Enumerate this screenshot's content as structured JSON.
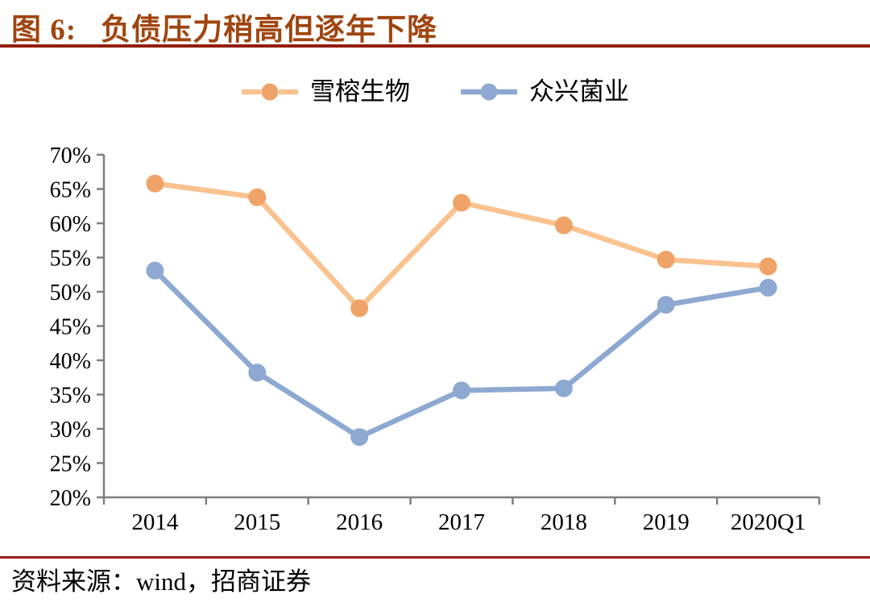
{
  "figure": {
    "number_label": "图 6:",
    "title": "负债压力稍高但逐年下降",
    "source": "资料来源：wind，招商证券"
  },
  "colors": {
    "title_text": "#A0450F",
    "title_rule": "#941E0E",
    "source_rule": "#941E0E",
    "axis": "#7F7F7F",
    "text": "#000000"
  },
  "chart_data": {
    "type": "line",
    "title": "负债压力稍高但逐年下降",
    "categories": [
      "2014",
      "2015",
      "2016",
      "2017",
      "2018",
      "2019",
      "2020Q1"
    ],
    "series": [
      {
        "name": "雪榕生物",
        "values": [
          65.8,
          63.8,
          47.6,
          63.0,
          59.7,
          54.7,
          53.7
        ],
        "line_color": "#F9C28F",
        "marker_color": "#F0A368",
        "legend_dash": "24 22"
      },
      {
        "name": "众兴菌业",
        "values": [
          53.1,
          38.2,
          28.8,
          35.6,
          35.9,
          48.1,
          50.6
        ],
        "line_color": "#8EA9D1",
        "marker_color": "#8EA9D1",
        "legend_dash": ""
      }
    ],
    "ylim": [
      20,
      70
    ],
    "ytick_step": 5,
    "ytick_labels": [
      "20%",
      "25%",
      "30%",
      "35%",
      "40%",
      "45%",
      "50%",
      "55%",
      "60%",
      "65%",
      "70%"
    ],
    "xlabel": "",
    "ylabel": "",
    "grid": false,
    "legend_position": "top-center",
    "marker": "circle"
  }
}
